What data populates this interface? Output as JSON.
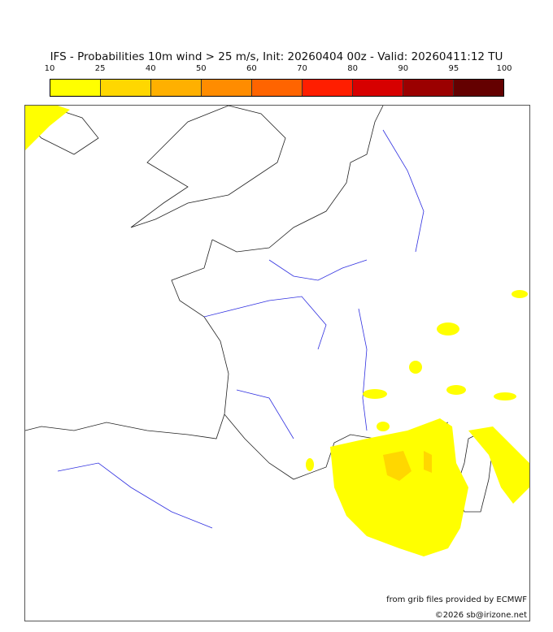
{
  "title": "IFS - Probabilities 10m wind > 25 m/s, Init: 20260404 00z - Valid: 20260411:12 TU",
  "legend": {
    "ticks": [
      "10",
      "25",
      "40",
      "50",
      "60",
      "70",
      "80",
      "90",
      "95",
      "100"
    ],
    "colors": [
      "#ffff00",
      "#ffd700",
      "#ffb000",
      "#ff8c00",
      "#ff6400",
      "#ff1e00",
      "#d70000",
      "#9b0000",
      "#640000"
    ]
  },
  "credits": {
    "source": "from grib files provided by ECMWF",
    "copyright": "©2026 sb@irizone.net"
  }
}
